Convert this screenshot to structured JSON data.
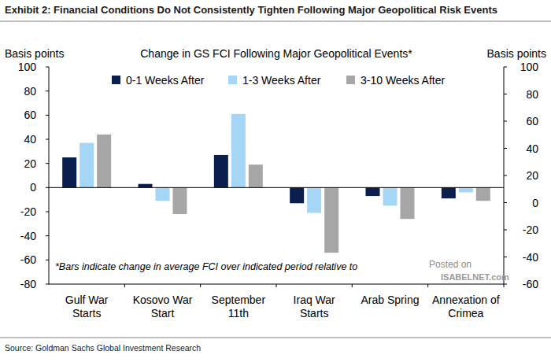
{
  "chart_data": {
    "type": "bar",
    "title": "Exhibit 2: Financial Conditions Do Not Consistently Tighten Following Major Geopolitical Risk Events",
    "subtitle": "Change in GS FCI Following Major Geopolitical Events*",
    "y_label": "Basis points",
    "y2_label": "Basis points",
    "annotations": [
      "*Bars indicate change in average FCI over indicated period relative to",
      "Posted on",
      "ISABELNET.com"
    ],
    "source": "Source: Goldman Sachs Global Investment Research",
    "categories": [
      "Gulf War\nStarts",
      "Kosovo War\nStart",
      "September\n11th",
      "Iraq War\nStarts",
      "Arab Spring",
      "Annexation of\nCrimea"
    ],
    "series": [
      {
        "name": "0-1 Weeks After",
        "color": "#0b1f4f",
        "values": [
          25,
          3,
          27,
          -13,
          -7,
          -9
        ]
      },
      {
        "name": "1-3 Weeks After",
        "color": "#a5d6f5",
        "values": [
          37,
          -11,
          61,
          -21,
          -15,
          -4
        ]
      },
      {
        "name": "3-10 Weeks After",
        "color": "#a6a6a6",
        "values": [
          44,
          -22,
          19,
          -54,
          -26,
          -11
        ]
      }
    ],
    "ylim": [
      -80,
      100
    ],
    "yticks": [
      -80,
      -60,
      -40,
      -20,
      0,
      20,
      40,
      60,
      80,
      100
    ],
    "y2lim": [
      -60,
      100
    ],
    "y2ticks": [
      -60,
      -40,
      -20,
      0,
      20,
      40,
      60,
      80,
      100
    ],
    "legend": "top",
    "grid": false
  }
}
